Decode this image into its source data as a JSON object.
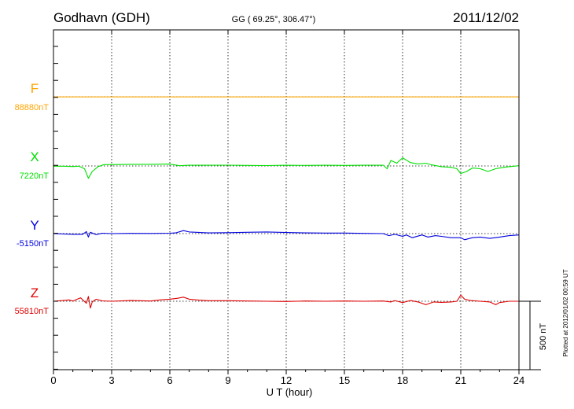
{
  "chart_data": {
    "type": "line",
    "station": "Godhavn (GDH)",
    "coords": "GG ( 69.25°, 306.47°)",
    "date": "2011/12/02",
    "xlabel": "U T (hour)",
    "xlim": [
      0,
      24
    ],
    "x_ticks": [
      "0",
      "3",
      "6",
      "9",
      "12",
      "15",
      "18",
      "21",
      "24"
    ],
    "grid": "dotted vertical every 3 hours",
    "scale_label": "500 nT",
    "plotted_note": "Plotted at 2012/01/02 00:59 UT",
    "series": [
      {
        "name": "F",
        "baseline_label": "88880nT",
        "color": "#ffa500",
        "points": [
          [
            0,
            -1
          ],
          [
            12,
            -1
          ],
          [
            24,
            -1
          ]
        ]
      },
      {
        "name": "X",
        "baseline_label": "7220nT",
        "color": "#00e000",
        "points": [
          [
            0,
            -2
          ],
          [
            0.5,
            -2
          ],
          [
            1,
            -4
          ],
          [
            1.3,
            -2
          ],
          [
            1.6,
            -20
          ],
          [
            1.8,
            -90
          ],
          [
            2.0,
            -40
          ],
          [
            2.3,
            -5
          ],
          [
            2.6,
            10
          ],
          [
            3,
            10
          ],
          [
            4,
            12
          ],
          [
            5,
            12
          ],
          [
            6,
            14
          ],
          [
            6.5,
            2
          ],
          [
            7,
            5
          ],
          [
            8,
            5
          ],
          [
            9,
            6
          ],
          [
            10,
            4
          ],
          [
            11,
            3
          ],
          [
            12,
            5
          ],
          [
            13,
            4
          ],
          [
            14,
            5
          ],
          [
            15,
            4
          ],
          [
            16,
            5
          ],
          [
            17,
            6
          ],
          [
            17.2,
            -20
          ],
          [
            17.4,
            40
          ],
          [
            17.7,
            20
          ],
          [
            18,
            60
          ],
          [
            18.4,
            25
          ],
          [
            18.8,
            15
          ],
          [
            19.2,
            20
          ],
          [
            19.5,
            8
          ],
          [
            20,
            -5
          ],
          [
            20.5,
            -10
          ],
          [
            20.8,
            -20
          ],
          [
            21,
            -55
          ],
          [
            21.3,
            -40
          ],
          [
            21.6,
            -15
          ],
          [
            22,
            -20
          ],
          [
            22.4,
            -40
          ],
          [
            22.8,
            -20
          ],
          [
            23.3,
            -8
          ],
          [
            24,
            2
          ]
        ]
      },
      {
        "name": "Y",
        "baseline_label": "-5150nT",
        "color": "#0000e0",
        "points": [
          [
            0,
            0
          ],
          [
            1,
            -5
          ],
          [
            1.5,
            -5
          ],
          [
            1.7,
            15
          ],
          [
            1.8,
            -25
          ],
          [
            1.9,
            10
          ],
          [
            2.2,
            -8
          ],
          [
            2.5,
            3
          ],
          [
            3,
            0
          ],
          [
            4,
            2
          ],
          [
            5,
            1
          ],
          [
            6,
            3
          ],
          [
            6.3,
            5
          ],
          [
            6.7,
            22
          ],
          [
            7,
            12
          ],
          [
            8,
            5
          ],
          [
            9,
            7
          ],
          [
            10,
            10
          ],
          [
            11,
            12
          ],
          [
            12,
            8
          ],
          [
            13,
            5
          ],
          [
            14,
            4
          ],
          [
            15,
            4
          ],
          [
            16,
            2
          ],
          [
            17,
            0
          ],
          [
            17.3,
            -15
          ],
          [
            17.6,
            -5
          ],
          [
            18,
            -20
          ],
          [
            18.2,
            -10
          ],
          [
            18.5,
            -30
          ],
          [
            19,
            -10
          ],
          [
            19.3,
            -25
          ],
          [
            19.7,
            -15
          ],
          [
            20,
            -20
          ],
          [
            20.5,
            -30
          ],
          [
            21,
            -30
          ],
          [
            21.2,
            -45
          ],
          [
            21.6,
            -30
          ],
          [
            22,
            -25
          ],
          [
            22.5,
            -35
          ],
          [
            23,
            -25
          ],
          [
            23.5,
            -15
          ],
          [
            24,
            -10
          ]
        ]
      },
      {
        "name": "Z",
        "baseline_label": "55810nT",
        "color": "#e00000",
        "points": [
          [
            0,
            0
          ],
          [
            0.5,
            5
          ],
          [
            0.8,
            10
          ],
          [
            1.0,
            2
          ],
          [
            1.4,
            25
          ],
          [
            1.7,
            -15
          ],
          [
            1.8,
            35
          ],
          [
            1.9,
            -50
          ],
          [
            2.0,
            -5
          ],
          [
            2.2,
            15
          ],
          [
            2.5,
            3
          ],
          [
            3,
            0
          ],
          [
            4,
            5
          ],
          [
            5,
            2
          ],
          [
            5.5,
            10
          ],
          [
            6,
            15
          ],
          [
            6.4,
            22
          ],
          [
            6.7,
            30
          ],
          [
            7,
            15
          ],
          [
            7.5,
            8
          ],
          [
            8,
            4
          ],
          [
            9,
            4
          ],
          [
            10,
            2
          ],
          [
            11,
            0
          ],
          [
            12,
            -2
          ],
          [
            13,
            2
          ],
          [
            14,
            0
          ],
          [
            15,
            2
          ],
          [
            16,
            0
          ],
          [
            17,
            2
          ],
          [
            17.4,
            -5
          ],
          [
            17.6,
            5
          ],
          [
            18,
            -10
          ],
          [
            18.4,
            5
          ],
          [
            18.8,
            -5
          ],
          [
            19.2,
            -25
          ],
          [
            19.6,
            -5
          ],
          [
            20,
            -8
          ],
          [
            20.5,
            -5
          ],
          [
            20.8,
            0
          ],
          [
            21.0,
            45
          ],
          [
            21.2,
            15
          ],
          [
            21.5,
            5
          ],
          [
            22,
            0
          ],
          [
            22.5,
            -5
          ],
          [
            22.8,
            -25
          ],
          [
            23,
            -10
          ],
          [
            23.5,
            0
          ],
          [
            24,
            0
          ]
        ]
      }
    ]
  }
}
